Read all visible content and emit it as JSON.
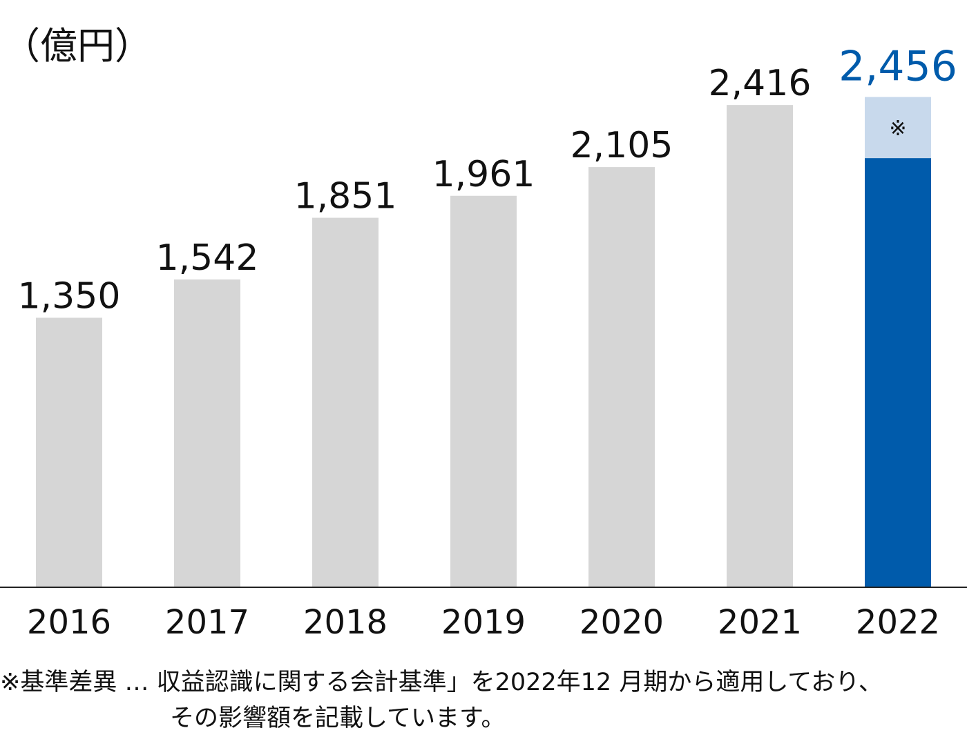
{
  "chart_data": {
    "type": "bar",
    "unit_label": "（億円）",
    "categories": [
      "2016",
      "2017",
      "2018",
      "2019",
      "2020",
      "2021",
      "2022"
    ],
    "values": [
      1350,
      1542,
      1851,
      1961,
      2105,
      2416,
      2456
    ],
    "value_labels": [
      "1,350",
      "1,542",
      "1,851",
      "1,961",
      "2,105",
      "2,416",
      "2,456"
    ],
    "highlight": {
      "category": "2022",
      "segment_marker": "※",
      "segment_value_approx": 306
    },
    "ylim": [
      0,
      2700
    ],
    "grid": false,
    "colors": {
      "bar": "#d6d6d6",
      "highlight_bar": "#005bab",
      "highlight_segment": "#c8d9ec",
      "highlight_label": "#005bab",
      "axis": "#222222",
      "text": "#111111"
    }
  },
  "footnote": {
    "line1": "※基準差異 … 収益認識に関する会計基準」を2022年12 月期から適用しており、",
    "line2": "その影響額を記載しています。"
  }
}
